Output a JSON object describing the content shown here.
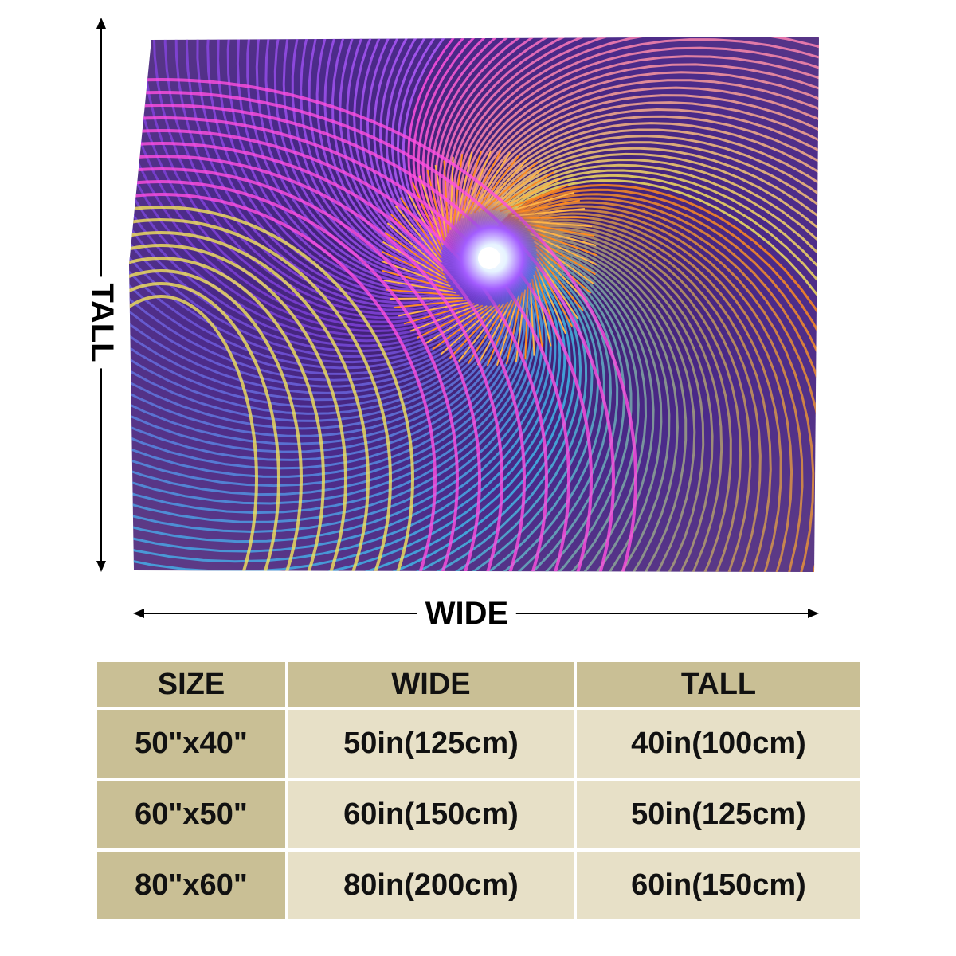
{
  "dimension_labels": {
    "tall": "TALL",
    "wide": "WIDE"
  },
  "size_table": {
    "headers": [
      "SIZE",
      "WIDE",
      "TALL"
    ],
    "rows": [
      {
        "size": "50\"x40\"",
        "wide": "50in(125cm)",
        "tall": "40in(100cm)"
      },
      {
        "size": "60\"x50\"",
        "wide": "60in(150cm)",
        "tall": "50in(125cm)"
      },
      {
        "size": "80\"x60\"",
        "wide": "80in(200cm)",
        "tall": "60in(150cm)"
      }
    ]
  },
  "colors": {
    "header_fill": "#c9bf95",
    "cell_fill": "#e7e0c7",
    "spiral_palette": [
      "#7b3fd6",
      "#3fb6e6",
      "#ff8a1f",
      "#ff4fe0",
      "#f2e35a",
      "#b35cff"
    ]
  }
}
